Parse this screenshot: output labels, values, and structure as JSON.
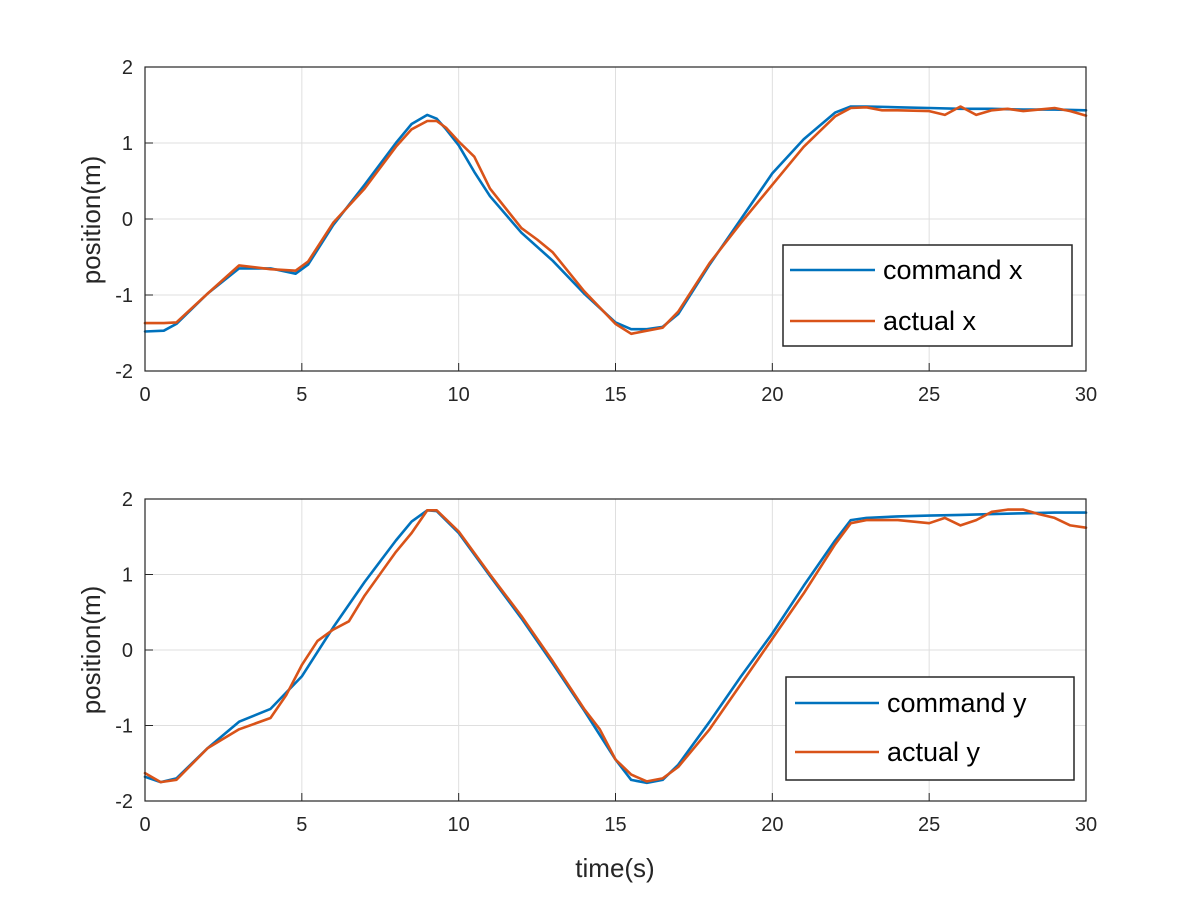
{
  "chart_data": [
    {
      "type": "line",
      "xlabel": "",
      "ylabel": "position(m)",
      "xlim": [
        0,
        30
      ],
      "ylim": [
        -2,
        2
      ],
      "xticks": [
        "0",
        "5",
        "10",
        "15",
        "20",
        "25",
        "30"
      ],
      "yticks": [
        "2",
        "1",
        "0",
        "-1",
        "-2"
      ],
      "grid": true,
      "legend": "bottom-right",
      "series": [
        {
          "name": "command x",
          "color": "#0072BD",
          "x": [
            0,
            0.6,
            1,
            2,
            3,
            4,
            4.8,
            5.2,
            6,
            7,
            8,
            8.5,
            9,
            9.3,
            9.6,
            10,
            10.5,
            11,
            12,
            13,
            14,
            15,
            15.5,
            16,
            16.5,
            17,
            18,
            19,
            20,
            21,
            22,
            22.5,
            23,
            24,
            25,
            26,
            27,
            28,
            29,
            30
          ],
          "values": [
            -1.48,
            -1.47,
            -1.38,
            -0.98,
            -0.65,
            -0.65,
            -0.72,
            -0.6,
            -0.08,
            0.45,
            1.0,
            1.25,
            1.37,
            1.32,
            1.18,
            0.97,
            0.62,
            0.3,
            -0.18,
            -0.55,
            -0.98,
            -1.36,
            -1.45,
            -1.45,
            -1.42,
            -1.25,
            -0.6,
            0.0,
            0.6,
            1.05,
            1.4,
            1.48,
            1.48,
            1.47,
            1.46,
            1.45,
            1.45,
            1.44,
            1.44,
            1.43
          ]
        },
        {
          "name": "actual x",
          "color": "#D95319",
          "x": [
            0,
            0.6,
            1,
            2,
            3,
            4,
            4.8,
            5.2,
            6,
            7,
            8,
            8.5,
            9,
            9.3,
            9.6,
            10,
            10.5,
            11,
            12,
            12.5,
            13,
            14,
            15,
            15.5,
            16,
            16.5,
            17,
            18,
            19,
            20,
            21,
            22,
            22.5,
            23,
            23.5,
            24,
            25,
            25.5,
            26,
            26.5,
            27,
            27.5,
            28,
            28.5,
            29,
            29.5,
            30
          ],
          "values": [
            -1.37,
            -1.37,
            -1.36,
            -0.98,
            -0.61,
            -0.66,
            -0.68,
            -0.56,
            -0.05,
            0.4,
            0.95,
            1.18,
            1.29,
            1.29,
            1.2,
            1.02,
            0.82,
            0.4,
            -0.12,
            -0.27,
            -0.44,
            -0.95,
            -1.38,
            -1.51,
            -1.47,
            -1.43,
            -1.22,
            -0.58,
            -0.05,
            0.45,
            0.95,
            1.35,
            1.46,
            1.47,
            1.43,
            1.43,
            1.42,
            1.37,
            1.48,
            1.37,
            1.43,
            1.45,
            1.42,
            1.44,
            1.46,
            1.42,
            1.36
          ]
        }
      ]
    },
    {
      "type": "line",
      "xlabel": "time(s)",
      "ylabel": "position(m)",
      "xlim": [
        0,
        30
      ],
      "ylim": [
        -2,
        2
      ],
      "xticks": [
        "0",
        "5",
        "10",
        "15",
        "20",
        "25",
        "30"
      ],
      "yticks": [
        "2",
        "1",
        "0",
        "-1",
        "-2"
      ],
      "grid": true,
      "legend": "bottom-right",
      "series": [
        {
          "name": "command y",
          "color": "#0072BD",
          "x": [
            0,
            0.5,
            1,
            2,
            3,
            4,
            5,
            6,
            7,
            8,
            8.5,
            9,
            9.3,
            10,
            11,
            12,
            13,
            14,
            15,
            15.5,
            16,
            16.5,
            17,
            18,
            19,
            20,
            21,
            22,
            22.5,
            23,
            24,
            25,
            26,
            27,
            28,
            29,
            30
          ],
          "values": [
            -1.68,
            -1.75,
            -1.7,
            -1.3,
            -0.95,
            -0.78,
            -0.35,
            0.3,
            0.9,
            1.45,
            1.7,
            1.85,
            1.84,
            1.55,
            0.98,
            0.42,
            -0.18,
            -0.8,
            -1.45,
            -1.72,
            -1.76,
            -1.72,
            -1.52,
            -0.95,
            -0.35,
            0.22,
            0.85,
            1.45,
            1.72,
            1.75,
            1.77,
            1.78,
            1.79,
            1.8,
            1.81,
            1.82,
            1.82
          ]
        },
        {
          "name": "actual y",
          "color": "#D95319",
          "x": [
            0,
            0.5,
            1,
            2,
            3,
            4,
            4.5,
            5,
            5.5,
            6,
            6.5,
            7,
            8,
            8.5,
            9,
            9.3,
            10,
            11,
            12,
            13,
            14,
            14.5,
            15,
            15.5,
            16,
            16.5,
            17,
            18,
            19,
            20,
            21,
            22,
            22.5,
            23,
            24,
            25,
            25.5,
            26,
            26.5,
            27,
            27.5,
            28,
            28.5,
            29,
            29.5,
            30
          ],
          "values": [
            -1.63,
            -1.75,
            -1.72,
            -1.3,
            -1.05,
            -0.9,
            -0.6,
            -0.2,
            0.12,
            0.27,
            0.38,
            0.72,
            1.3,
            1.55,
            1.85,
            1.85,
            1.57,
            1.0,
            0.45,
            -0.15,
            -0.78,
            -1.05,
            -1.45,
            -1.65,
            -1.74,
            -1.7,
            -1.55,
            -1.05,
            -0.45,
            0.15,
            0.75,
            1.4,
            1.68,
            1.72,
            1.72,
            1.68,
            1.75,
            1.65,
            1.72,
            1.83,
            1.86,
            1.86,
            1.8,
            1.75,
            1.65,
            1.62
          ]
        }
      ]
    }
  ]
}
